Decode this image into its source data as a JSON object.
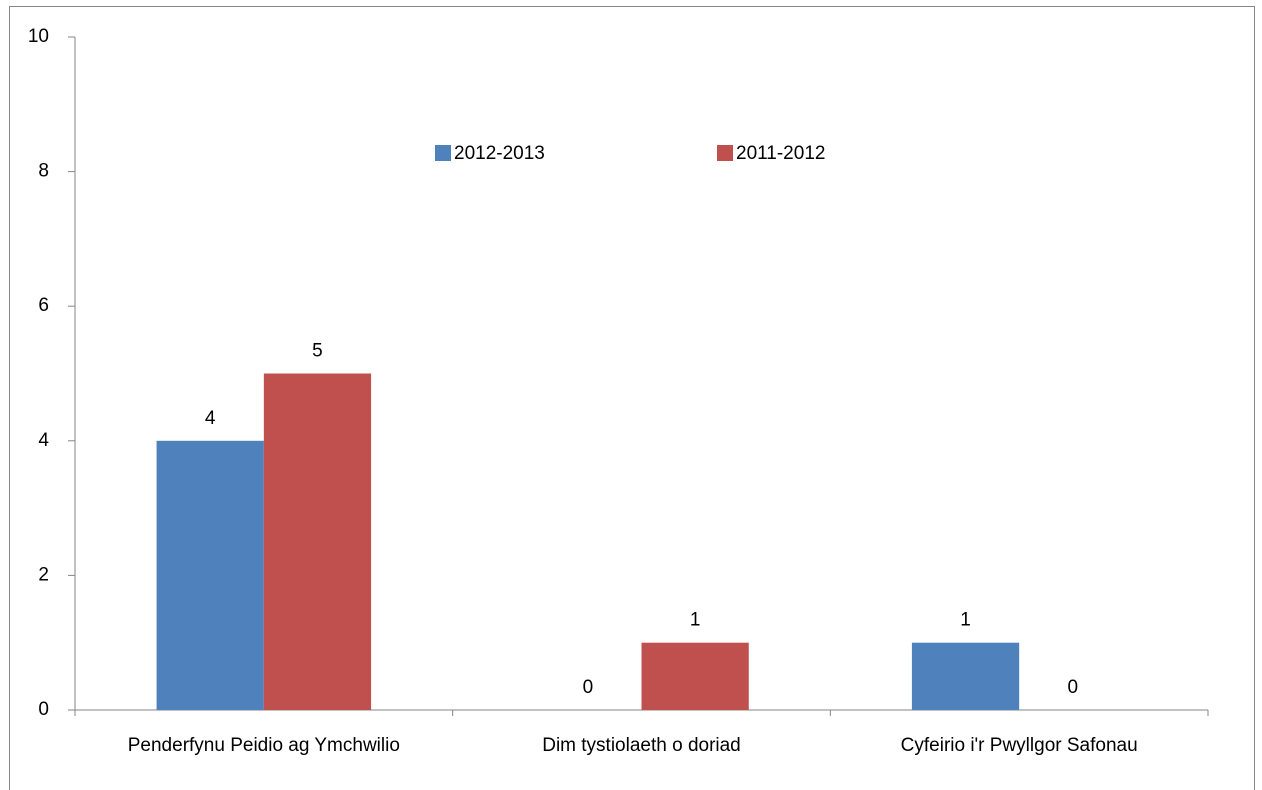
{
  "chart_data": {
    "type": "bar",
    "categories": [
      "Penderfynu Peidio ag Ymchwilio",
      "Dim tystiolaeth o doriad",
      "Cyfeirio i'r Pwyllgor Safonau"
    ],
    "series": [
      {
        "name": "2012-2013",
        "color": "#4f81bd",
        "values": [
          4,
          0,
          1
        ]
      },
      {
        "name": "2011-2012",
        "color": "#c0504d",
        "values": [
          5,
          1,
          0
        ]
      }
    ],
    "ylim": [
      0,
      10
    ],
    "yticks": [
      0,
      2,
      4,
      6,
      8,
      10
    ],
    "grid": false,
    "legend": "top"
  }
}
